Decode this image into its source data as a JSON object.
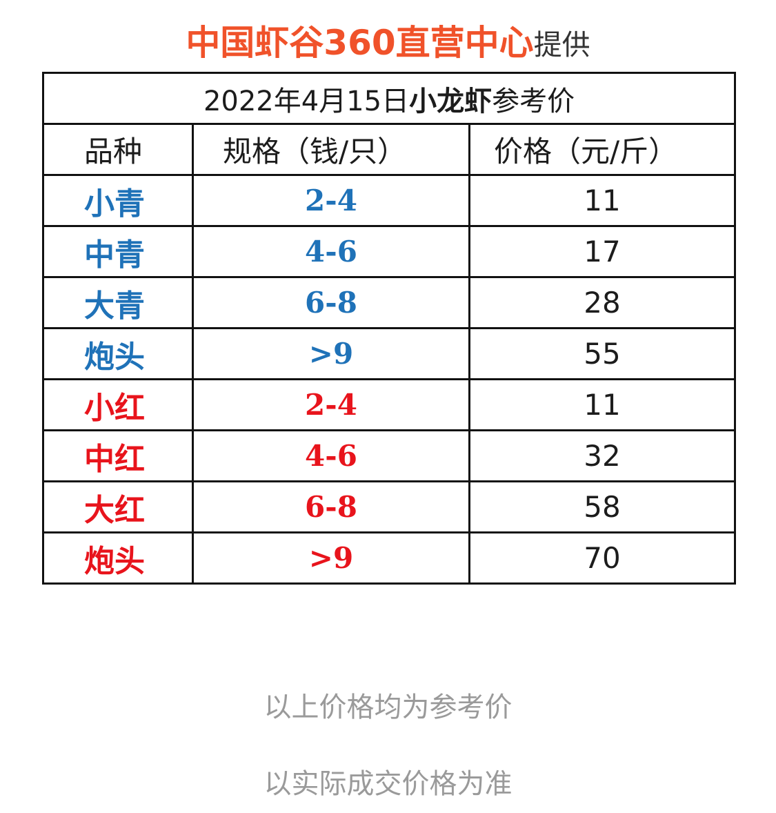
{
  "header": {
    "brand": "中国虾谷360直营中心",
    "suffix": "提供"
  },
  "table": {
    "caption": {
      "date": "2022年4月15日",
      "product": "小龙虾",
      "suffix": "参考价"
    },
    "columns": [
      "品种",
      "规格（钱/只）",
      "价格（元/斤）"
    ],
    "rows": [
      {
        "variety": "小青",
        "spec": "2-4",
        "price": "11",
        "color": "#1f72b8"
      },
      {
        "variety": "中青",
        "spec": "4-6",
        "price": "17",
        "color": "#1f72b8"
      },
      {
        "variety": "大青",
        "spec": "6-8",
        "price": "28",
        "color": "#1f72b8"
      },
      {
        "variety": "炮头",
        "spec": ">9",
        "price": "55",
        "color": "#1f72b8"
      },
      {
        "variety": "小红",
        "spec": "2-4",
        "price": "11",
        "color": "#e8141c"
      },
      {
        "variety": "中红",
        "spec": "4-6",
        "price": "32",
        "color": "#e8141c"
      },
      {
        "variety": "大红",
        "spec": "6-8",
        "price": "58",
        "color": "#e8141c"
      },
      {
        "variety": "炮头",
        "spec": ">9",
        "price": "70",
        "color": "#e8141c"
      }
    ]
  },
  "notes": [
    "以上价格均为参考价",
    "以实际成交价格为准"
  ],
  "colors": {
    "brand": "#f0522a",
    "blue": "#1f72b8",
    "red": "#e8141c",
    "note": "#9a9a9a"
  }
}
